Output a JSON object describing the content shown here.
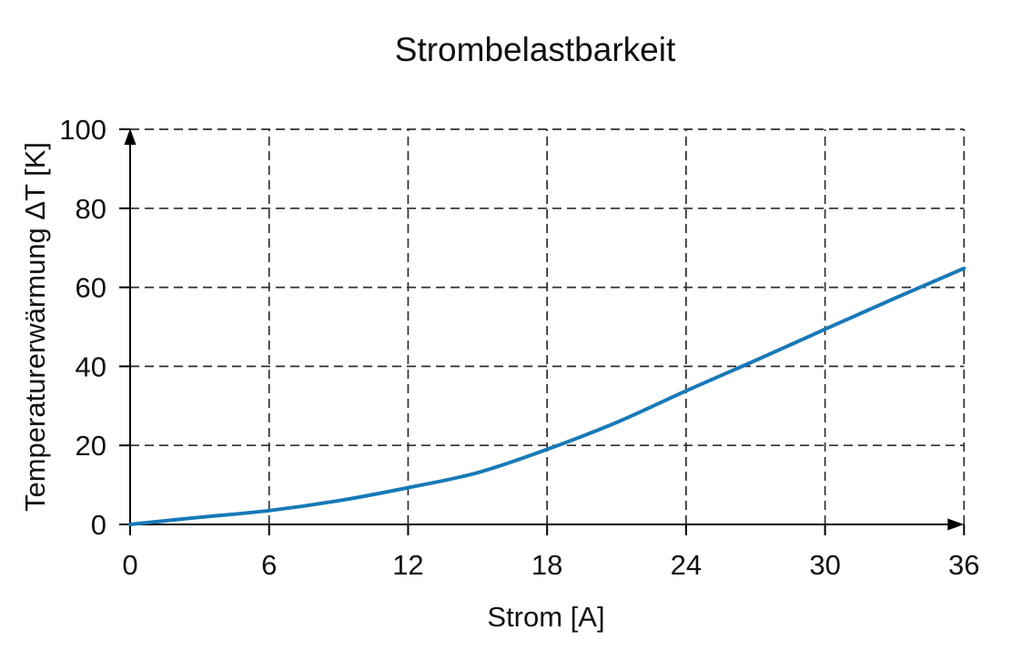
{
  "chart_data": {
    "type": "line",
    "title": "Strombelastbarkeit",
    "xlabel": "Strom [A]",
    "ylabel": "Temperaturerwärmung ΔT [K]",
    "xlim": [
      0,
      36
    ],
    "ylim": [
      0,
      100
    ],
    "xticks": [
      0,
      6,
      12,
      18,
      24,
      30,
      36
    ],
    "yticks": [
      0,
      20,
      40,
      60,
      80,
      100
    ],
    "grid": "dashed",
    "legend": "none",
    "axis_style": "arrow-ended axes with outside tick marks",
    "series": [
      {
        "name": "Temperaturerwärmung",
        "color": "#1779b7",
        "x": [
          0,
          3,
          6,
          9,
          12,
          15,
          18,
          21,
          24,
          27,
          30,
          33,
          36
        ],
        "y": [
          0,
          1.8,
          3.5,
          6.0,
          9.3,
          13.1,
          19.0,
          25.8,
          33.8,
          41.5,
          49.4,
          57.2,
          64.8
        ]
      }
    ],
    "colors": {
      "line": "#1779b7",
      "axis": "#000000",
      "grid": "#2e2e2e",
      "text": "#111111",
      "background": "#ffffff"
    }
  }
}
